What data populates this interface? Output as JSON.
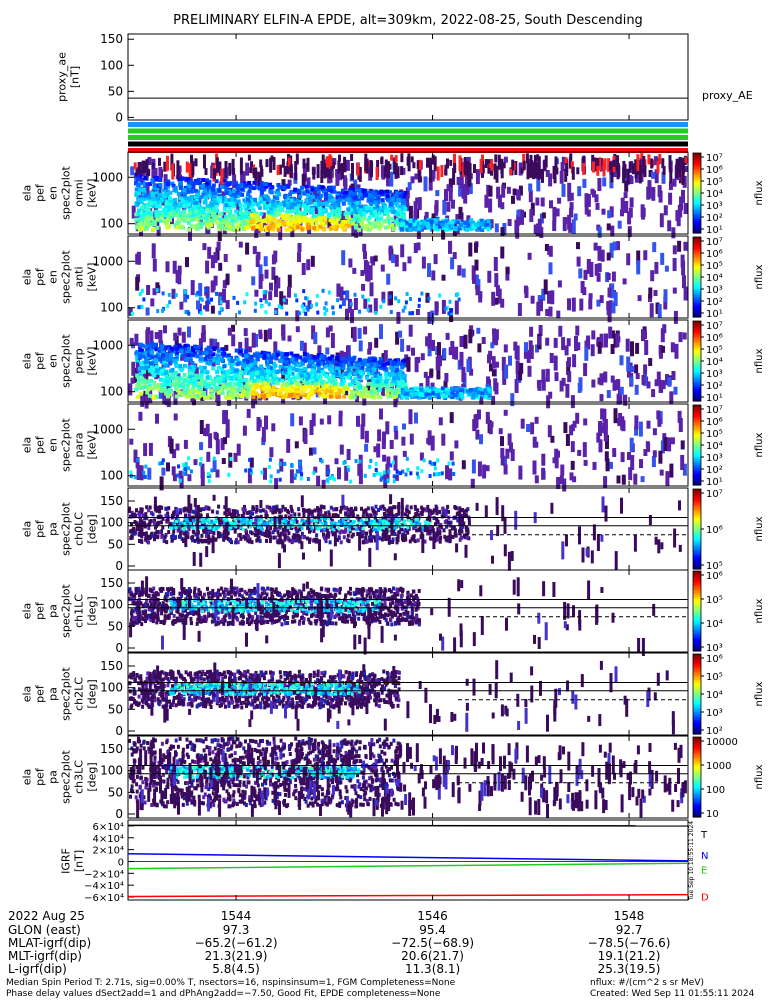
{
  "title": "PRELIMINARY ELFIN-A EPDE, alt=309km, 2022-08-25, South Descending",
  "proxy_panel": {
    "ylabel": [
      "proxy_ae",
      "[nT]"
    ],
    "yticks": [
      0,
      50,
      100,
      150
    ],
    "ylim": [
      -5,
      160
    ],
    "series_label": "proxy_AE",
    "series": [
      {
        "name": "proxy_AE",
        "x": [
          1542.9,
          1548.6
        ],
        "y": [
          37,
          37
        ]
      }
    ]
  },
  "flag_bars": [
    {
      "color": "#1E90FF"
    },
    {
      "color": "#22CC22"
    },
    {
      "color": "#22CC22"
    },
    {
      "color": "#000000"
    },
    {
      "color": "#FF0000"
    }
  ],
  "time_axis": {
    "xlim": [
      1542.9,
      1548.6
    ],
    "ticks": [
      1544,
      1546,
      1548
    ],
    "tick_labels": [
      "1544",
      "1546",
      "1548"
    ],
    "date_label": "2022 Aug 25"
  },
  "energy_panels": [
    {
      "ylabel": [
        "ela",
        "pef",
        "en",
        "spec2plot",
        "omni",
        "[keV]"
      ],
      "yticks": [
        100,
        1000
      ],
      "tick_labels": [
        "100",
        "1000"
      ]
    },
    {
      "ylabel": [
        "ela",
        "pef",
        "en",
        "spec2plot",
        "anti",
        "[keV]"
      ],
      "yticks": [
        100,
        1000
      ],
      "tick_labels": [
        "100",
        "1000"
      ]
    },
    {
      "ylabel": [
        "ela",
        "pef",
        "en",
        "spec2plot",
        "perp",
        "[keV]"
      ],
      "yticks": [
        100,
        1000
      ],
      "tick_labels": [
        "100",
        "1000"
      ]
    },
    {
      "ylabel": [
        "ela",
        "pef",
        "en",
        "spec2plot",
        "para",
        "[keV]"
      ],
      "yticks": [
        100,
        1000
      ],
      "tick_labels": [
        "100",
        "1000"
      ]
    }
  ],
  "pitch_panels": [
    {
      "ylabel": [
        "ela",
        "pef",
        "pa",
        "spec2plot",
        "ch0LC",
        "[deg]"
      ],
      "yticks": [
        0,
        50,
        100,
        150
      ],
      "tick_labels": [
        "0",
        "50",
        "100",
        "150"
      ]
    },
    {
      "ylabel": [
        "ela",
        "pef",
        "pa",
        "spec2plot",
        "ch1LC",
        "[deg]"
      ],
      "yticks": [
        0,
        50,
        100,
        150
      ],
      "tick_labels": [
        "0",
        "50",
        "100",
        "150"
      ]
    },
    {
      "ylabel": [
        "ela",
        "pef",
        "pa",
        "spec2plot",
        "ch2LC",
        "[deg]"
      ],
      "yticks": [
        0,
        50,
        100,
        150
      ],
      "tick_labels": [
        "0",
        "50",
        "100",
        "150"
      ]
    },
    {
      "ylabel": [
        "ela",
        "pef",
        "pa",
        "spec2plot",
        "ch3LC",
        "[deg]"
      ],
      "yticks": [
        0,
        50,
        100,
        150
      ],
      "tick_labels": [
        "0",
        "50",
        "100",
        "150"
      ]
    }
  ],
  "colorbars": [
    {
      "label": "nflux",
      "ticks": [
        "10⁷",
        "10⁶",
        "10⁵",
        "10⁴",
        "10³",
        "10²",
        "10¹"
      ]
    },
    {
      "label": "nflux",
      "ticks": [
        "10⁷",
        "10⁶",
        "10⁵",
        "10⁴",
        "10³",
        "10²",
        "10¹"
      ]
    },
    {
      "label": "nflux",
      "ticks": [
        "10⁷",
        "10⁶",
        "10⁵",
        "10⁴",
        "10³",
        "10²",
        "10¹"
      ]
    },
    {
      "label": "nflux",
      "ticks": [
        "10⁷",
        "10⁶",
        "10⁵",
        "10⁴",
        "10³",
        "10²",
        "10¹"
      ]
    },
    {
      "label": "nflux",
      "ticks": [
        "10⁷",
        "10⁶",
        "10⁵"
      ]
    },
    {
      "label": "nflux",
      "ticks": [
        "10⁶",
        "10⁵",
        "10⁴",
        "10³"
      ]
    },
    {
      "label": "nflux",
      "ticks": [
        "10⁶",
        "10⁵",
        "10⁴",
        "10³",
        "10²"
      ]
    },
    {
      "label": "nflux",
      "ticks": [
        "10000",
        "1000",
        "100",
        "10"
      ]
    }
  ],
  "igrf_panel": {
    "ylabel": [
      "IGRF",
      "[nT]"
    ],
    "ylim": [
      -65000,
      70000
    ],
    "yticks": [
      60000,
      40000,
      20000,
      0,
      -20000,
      -40000,
      -60000
    ],
    "tick_labels": [
      "6×10⁴",
      "4×10⁴",
      "2×10⁴",
      "0",
      "−2×10⁴",
      "−4×10⁴",
      "−6×10⁴"
    ],
    "series": [
      {
        "name": "T",
        "color": "#000000",
        "x": [
          1542.9,
          1548.6
        ],
        "y": [
          61000,
          60000
        ]
      },
      {
        "name": "N",
        "color": "#0000FF",
        "x": [
          1542.9,
          1548.6
        ],
        "y": [
          13000,
          1000
        ]
      },
      {
        "name": "E",
        "color": "#22CC22",
        "x": [
          1542.9,
          1548.6
        ],
        "y": [
          -12000,
          -3000
        ]
      },
      {
        "name": "D",
        "color": "#FF0000",
        "x": [
          1542.9,
          1548.6
        ],
        "y": [
          -59000,
          -56000
        ]
      }
    ],
    "letters": [
      "T",
      "N",
      "E",
      "D"
    ]
  },
  "orbit_rows": [
    {
      "label": "GLON (east)",
      "values": [
        "97.3",
        "95.4",
        "92.7"
      ]
    },
    {
      "label": "MLAT-igrf(dip)",
      "values": [
        "−65.2(−61.2)",
        "−72.5(−68.9)",
        "−78.5(−76.6)"
      ]
    },
    {
      "label": "MLT-igrf(dip)",
      "values": [
        "21.3(21.9)",
        "20.6(21.7)",
        "19.1(21.2)"
      ]
    },
    {
      "label": "L-igrf(dip)",
      "values": [
        "5.8(4.5)",
        "11.3(8.1)",
        "25.3(19.5)"
      ]
    }
  ],
  "footer": {
    "line1_left": "Median Spin Period T: 2.71s, sig=0.00% T, nsectors=16, nspinsinsum=1, FGM Completeness=None",
    "line2_left": "Phase delay values dSect2add=1 and dPhAng2add=−7.50, Good Fit, EPDE completeness=None",
    "line1_right": "nflux: #/(cm^2 s sr MeV)",
    "line2_right": "Created: Wed Sep 11 01:55:11 2024",
    "vertical_stamp": "Tue Sep 10 18:55:11 2024"
  }
}
